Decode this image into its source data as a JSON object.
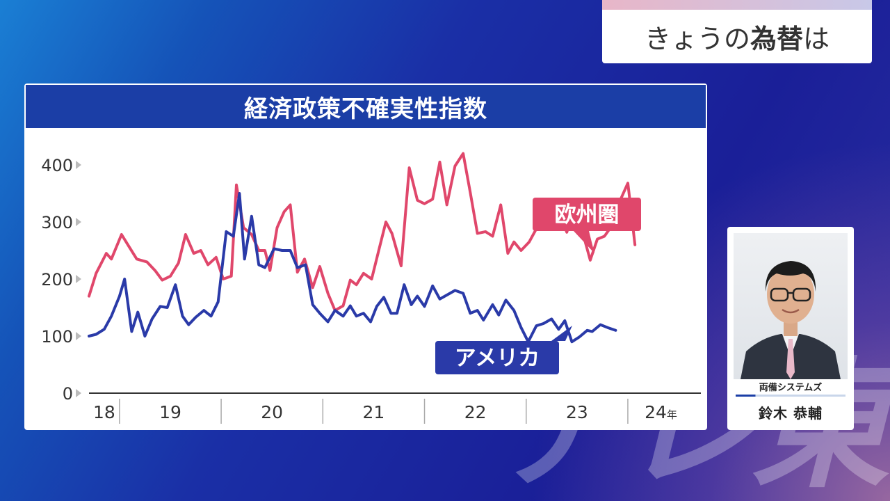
{
  "topic": {
    "prefix": "きょうの",
    "main": "為替",
    "suffix": "は"
  },
  "watermark": "テレ東",
  "speaker": {
    "org": "両備システムズ",
    "name": "鈴木 恭輔"
  },
  "chart_data": {
    "type": "line",
    "title": "経済政策不確実性指数",
    "xlabel": "",
    "ylabel": "",
    "ylim": [
      0,
      400
    ],
    "yticks": [
      0,
      100,
      200,
      300,
      400
    ],
    "year_labels": [
      "18",
      "19",
      "20",
      "21",
      "22",
      "23",
      "24"
    ],
    "year_suffix": "年",
    "year_boundaries": [
      2018.7,
      2019,
      2020,
      2021,
      2022,
      2023,
      2024,
      2024.65
    ],
    "grid": false,
    "series": [
      {
        "name": "欧州圏",
        "color": "#e0476b",
        "points": [
          [
            2018.7,
            170
          ],
          [
            2018.77,
            210
          ],
          [
            2018.87,
            245
          ],
          [
            2018.92,
            235
          ],
          [
            2019.02,
            278
          ],
          [
            2019.1,
            255
          ],
          [
            2019.17,
            235
          ],
          [
            2019.27,
            230
          ],
          [
            2019.35,
            215
          ],
          [
            2019.42,
            198
          ],
          [
            2019.5,
            205
          ],
          [
            2019.58,
            228
          ],
          [
            2019.65,
            278
          ],
          [
            2019.73,
            245
          ],
          [
            2019.8,
            250
          ],
          [
            2019.87,
            225
          ],
          [
            2019.95,
            238
          ],
          [
            2020.02,
            200
          ],
          [
            2020.1,
            205
          ],
          [
            2020.15,
            365
          ],
          [
            2020.22,
            290
          ],
          [
            2020.3,
            278
          ],
          [
            2020.37,
            250
          ],
          [
            2020.43,
            250
          ],
          [
            2020.48,
            215
          ],
          [
            2020.55,
            290
          ],
          [
            2020.62,
            318
          ],
          [
            2020.68,
            330
          ],
          [
            2020.75,
            212
          ],
          [
            2020.82,
            235
          ],
          [
            2020.9,
            185
          ],
          [
            2020.97,
            222
          ],
          [
            2021.05,
            175
          ],
          [
            2021.12,
            145
          ],
          [
            2021.2,
            153
          ],
          [
            2021.27,
            198
          ],
          [
            2021.33,
            190
          ],
          [
            2021.4,
            210
          ],
          [
            2021.48,
            200
          ],
          [
            2021.55,
            250
          ],
          [
            2021.62,
            300
          ],
          [
            2021.68,
            280
          ],
          [
            2021.77,
            223
          ],
          [
            2021.85,
            395
          ],
          [
            2021.93,
            338
          ],
          [
            2022.0,
            332
          ],
          [
            2022.08,
            340
          ],
          [
            2022.15,
            405
          ],
          [
            2022.22,
            330
          ],
          [
            2022.3,
            398
          ],
          [
            2022.38,
            420
          ],
          [
            2022.45,
            352
          ],
          [
            2022.52,
            280
          ],
          [
            2022.6,
            283
          ],
          [
            2022.67,
            275
          ],
          [
            2022.75,
            330
          ],
          [
            2022.82,
            245
          ],
          [
            2022.88,
            265
          ],
          [
            2022.95,
            250
          ],
          [
            2023.03,
            265
          ],
          [
            2023.1,
            288
          ],
          [
            2023.18,
            320
          ],
          [
            2023.25,
            315
          ],
          [
            2023.32,
            318
          ],
          [
            2023.4,
            282
          ],
          [
            2023.47,
            325
          ],
          [
            2023.55,
            285
          ],
          [
            2023.63,
            233
          ],
          [
            2023.7,
            270
          ],
          [
            2023.77,
            275
          ],
          [
            2023.85,
            295
          ],
          [
            2023.93,
            340
          ],
          [
            2024.0,
            368
          ],
          [
            2024.07,
            260
          ]
        ]
      },
      {
        "name": "アメリカ",
        "color": "#2a3aa8",
        "points": [
          [
            2018.7,
            100
          ],
          [
            2018.77,
            103
          ],
          [
            2018.85,
            112
          ],
          [
            2018.92,
            135
          ],
          [
            2019.0,
            170
          ],
          [
            2019.05,
            200
          ],
          [
            2019.12,
            108
          ],
          [
            2019.18,
            142
          ],
          [
            2019.25,
            100
          ],
          [
            2019.32,
            130
          ],
          [
            2019.4,
            152
          ],
          [
            2019.47,
            150
          ],
          [
            2019.55,
            190
          ],
          [
            2019.62,
            135
          ],
          [
            2019.68,
            120
          ],
          [
            2019.75,
            133
          ],
          [
            2019.83,
            145
          ],
          [
            2019.9,
            135
          ],
          [
            2019.97,
            160
          ],
          [
            2020.05,
            283
          ],
          [
            2020.12,
            275
          ],
          [
            2020.18,
            350
          ],
          [
            2020.23,
            235
          ],
          [
            2020.3,
            310
          ],
          [
            2020.37,
            225
          ],
          [
            2020.43,
            220
          ],
          [
            2020.52,
            253
          ],
          [
            2020.6,
            250
          ],
          [
            2020.68,
            250
          ],
          [
            2020.75,
            220
          ],
          [
            2020.83,
            225
          ],
          [
            2020.9,
            155
          ],
          [
            2020.97,
            140
          ],
          [
            2021.05,
            125
          ],
          [
            2021.12,
            145
          ],
          [
            2021.2,
            135
          ],
          [
            2021.27,
            153
          ],
          [
            2021.33,
            135
          ],
          [
            2021.4,
            140
          ],
          [
            2021.47,
            125
          ],
          [
            2021.53,
            152
          ],
          [
            2021.6,
            168
          ],
          [
            2021.67,
            140
          ],
          [
            2021.73,
            140
          ],
          [
            2021.8,
            190
          ],
          [
            2021.87,
            155
          ],
          [
            2021.93,
            170
          ],
          [
            2022.0,
            152
          ],
          [
            2022.08,
            188
          ],
          [
            2022.15,
            165
          ],
          [
            2022.22,
            172
          ],
          [
            2022.3,
            180
          ],
          [
            2022.38,
            175
          ],
          [
            2022.45,
            140
          ],
          [
            2022.52,
            145
          ],
          [
            2022.58,
            128
          ],
          [
            2022.67,
            155
          ],
          [
            2022.73,
            137
          ],
          [
            2022.8,
            163
          ],
          [
            2022.88,
            145
          ],
          [
            2022.95,
            115
          ],
          [
            2023.02,
            90
          ],
          [
            2023.1,
            118
          ],
          [
            2023.17,
            122
          ],
          [
            2023.25,
            130
          ],
          [
            2023.32,
            112
          ],
          [
            2023.38,
            127
          ],
          [
            2023.45,
            90
          ],
          [
            2023.52,
            98
          ],
          [
            2023.6,
            110
          ],
          [
            2023.65,
            108
          ],
          [
            2023.73,
            120
          ],
          [
            2023.8,
            115
          ],
          [
            2023.88,
            110
          ]
        ]
      }
    ]
  }
}
